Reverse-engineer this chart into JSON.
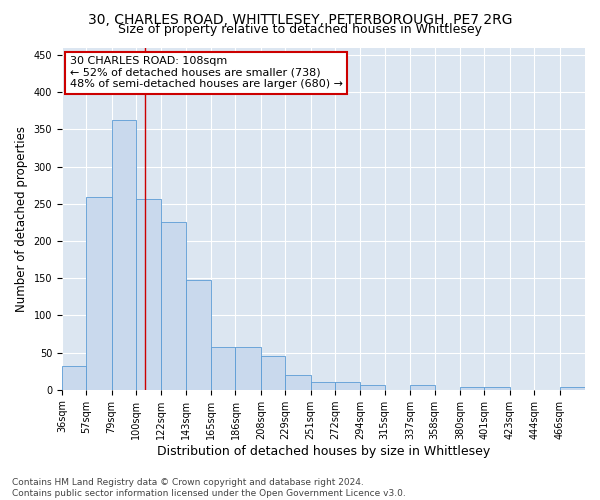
{
  "title1": "30, CHARLES ROAD, WHITTLESEY, PETERBOROUGH, PE7 2RG",
  "title2": "Size of property relative to detached houses in Whittlesey",
  "xlabel": "Distribution of detached houses by size in Whittlesey",
  "ylabel": "Number of detached properties",
  "bar_color": "#c9d9ed",
  "bar_edge_color": "#5b9bd5",
  "background_color": "#dce6f1",
  "fig_background_color": "#ffffff",
  "categories": [
    "36sqm",
    "57sqm",
    "79sqm",
    "100sqm",
    "122sqm",
    "143sqm",
    "165sqm",
    "186sqm",
    "208sqm",
    "229sqm",
    "251sqm",
    "272sqm",
    "294sqm",
    "315sqm",
    "337sqm",
    "358sqm",
    "380sqm",
    "401sqm",
    "423sqm",
    "444sqm",
    "466sqm"
  ],
  "values": [
    32,
    259,
    363,
    257,
    225,
    148,
    57,
    57,
    45,
    20,
    10,
    10,
    7,
    0,
    6,
    0,
    4,
    4,
    0,
    0,
    4
  ],
  "property_line_x": 108,
  "property_line_color": "#cc0000",
  "annotation_line1": "30 CHARLES ROAD: 108sqm",
  "annotation_line2": "← 52% of detached houses are smaller (738)",
  "annotation_line3": "48% of semi-detached houses are larger (680) →",
  "annotation_box_color": "white",
  "annotation_box_edge_color": "#cc0000",
  "ylim": [
    0,
    460
  ],
  "yticks": [
    0,
    50,
    100,
    150,
    200,
    250,
    300,
    350,
    400,
    450
  ],
  "footer": "Contains HM Land Registry data © Crown copyright and database right 2024.\nContains public sector information licensed under the Open Government Licence v3.0.",
  "grid_color": "#ffffff",
  "title1_fontsize": 10,
  "title2_fontsize": 9,
  "xlabel_fontsize": 9,
  "ylabel_fontsize": 8.5,
  "tick_fontsize": 7,
  "annotation_fontsize": 8,
  "footer_fontsize": 6.5
}
